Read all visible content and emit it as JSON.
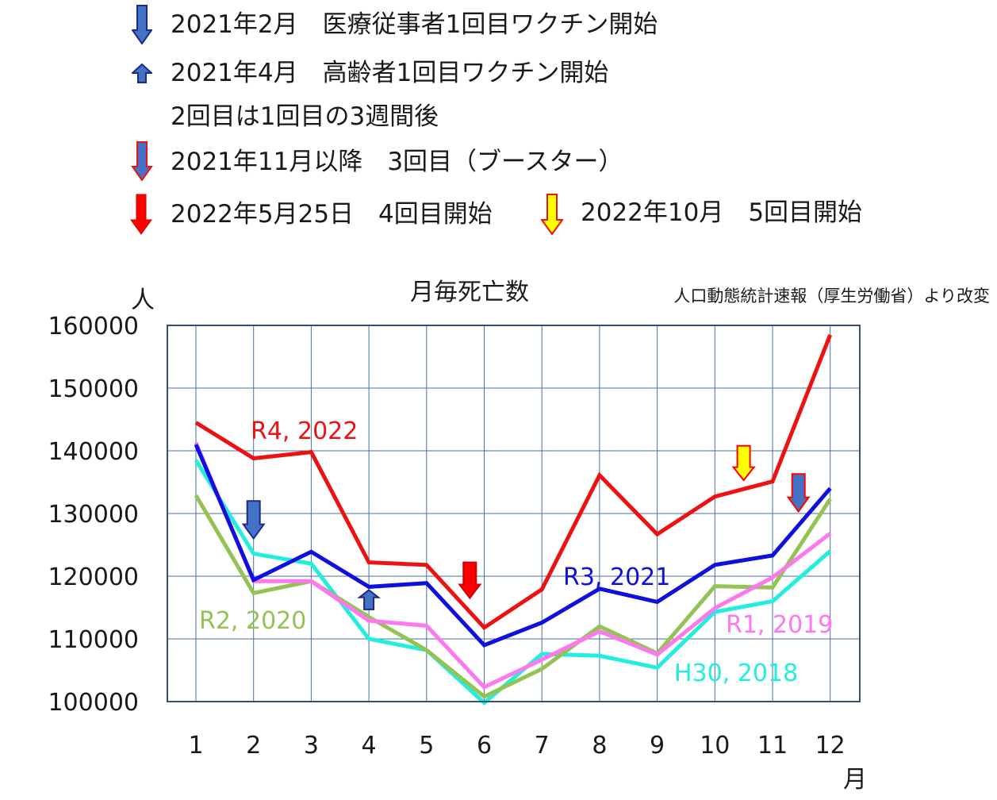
{
  "legend": [
    {
      "icon": "blue-down-arrow-icon",
      "text": "2021年2月　医療従事者1回目ワクチン開始"
    },
    {
      "icon": "small-blue-up-arrow-icon",
      "text": "2021年4月　高齢者1回目ワクチン開始"
    },
    {
      "icon": "",
      "text": "2回目は1回目の3週間後"
    },
    {
      "icon": "blue-red-outline-down-arrow-icon",
      "text": "2021年11月以降　3回目（ブースター）"
    },
    {
      "icon": "red-down-arrow-icon",
      "text": "2022年5月25日　4回目開始"
    },
    {
      "icon": "yellow-down-arrow-icon",
      "text": "2022年10月　5回目開始"
    }
  ],
  "colors": {
    "R4_2022": "#ee1111",
    "R3_2021": "#1010dd",
    "R2_2020": "#92c353",
    "R1_2019": "#ff77ee",
    "H30_2018": "#22eedd",
    "arrow_blue": "#4472c4",
    "arrow_red": "#ff0000",
    "arrow_yellow": "#ffff00",
    "grid": "#4a6fa5"
  },
  "chart_data": {
    "type": "line",
    "title": "月毎死亡数",
    "source_note": "人口動態統計速報（厚生労働省）より改変",
    "ylabel": "人",
    "xlabel": "月",
    "categories": [
      "1",
      "2",
      "3",
      "4",
      "5",
      "6",
      "7",
      "8",
      "9",
      "10",
      "11",
      "12"
    ],
    "ylim": [
      100000,
      160000
    ],
    "yticks": [
      100000,
      110000,
      120000,
      130000,
      140000,
      150000,
      160000
    ],
    "grid": true,
    "series": [
      {
        "name": "R4, 2022",
        "key": "R4_2022",
        "values": [
          144500,
          138800,
          139800,
          122200,
          121800,
          111800,
          117900,
          136100,
          126700,
          132700,
          135100,
          158500
        ]
      },
      {
        "name": "R3, 2021",
        "key": "R3_2021",
        "values": [
          141000,
          119400,
          123900,
          118300,
          118900,
          109000,
          112600,
          118000,
          115900,
          121800,
          123300,
          134000
        ]
      },
      {
        "name": "R2, 2020",
        "key": "R2_2020",
        "values": [
          132900,
          117300,
          119200,
          113500,
          108200,
          100800,
          105200,
          112000,
          107700,
          118400,
          118200,
          132300
        ]
      },
      {
        "name": "R1, 2019",
        "key": "R1_2019",
        "values": [
          141300,
          119200,
          119200,
          112900,
          112100,
          102300,
          106700,
          111200,
          107500,
          114900,
          119800,
          126800
        ]
      },
      {
        "name": "H30, 2018",
        "key": "H30_2018",
        "values": [
          138500,
          123600,
          122000,
          110000,
          108200,
          99800,
          107600,
          107300,
          105400,
          114300,
          116000,
          124000
        ]
      }
    ],
    "annotations": [
      {
        "type": "blue-down-arrow-icon",
        "month": 2,
        "y_top": 132000,
        "y_bottom": 126000
      },
      {
        "type": "small-blue-up-arrow-icon",
        "month": 4,
        "y_top": 117800,
        "y_bottom": 114700
      },
      {
        "type": "red-down-arrow-icon",
        "month": 5.75,
        "y_top": 122200,
        "y_bottom": 116500
      },
      {
        "type": "yellow-down-arrow-icon",
        "month": 10.5,
        "y_top": 140800,
        "y_bottom": 135300
      },
      {
        "type": "blue-red-outline-down-arrow-icon",
        "month": 11.45,
        "y_top": 136300,
        "y_bottom": 130300
      }
    ]
  }
}
